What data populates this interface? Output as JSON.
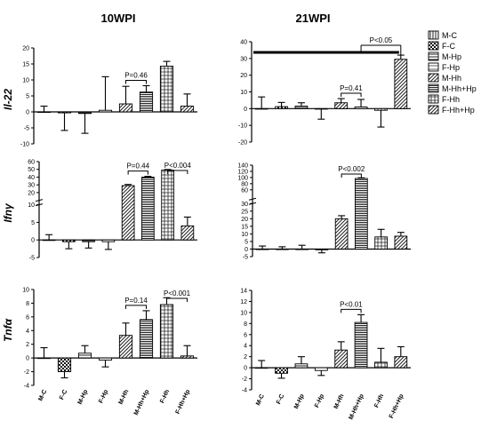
{
  "columns": [
    "10WPI",
    "21WPI"
  ],
  "rows": [
    "Il-22",
    "Ifnγ",
    "Tnfα"
  ],
  "groups": [
    "M-C",
    "F-C",
    "M-Hp",
    "F-Hp",
    "M-Hh",
    "M-Hh+Hp",
    "F-Hh",
    "F-Hh+Hp"
  ],
  "legend": {
    "items": [
      {
        "label": "M-C",
        "pattern": "vlines"
      },
      {
        "label": "F-C",
        "pattern": "check"
      },
      {
        "label": "M-Hp",
        "pattern": "hlines"
      },
      {
        "label": "F-Hp",
        "pattern": "hlines-sparse"
      },
      {
        "label": "M-Hh",
        "pattern": "diag"
      },
      {
        "label": "M-Hh+Hp",
        "pattern": "hlines-dense"
      },
      {
        "label": "F-Hh",
        "pattern": "grid"
      },
      {
        "label": "F-Hh+Hp",
        "pattern": "diag"
      }
    ]
  },
  "chart_data": [
    {
      "type": "bar",
      "row": "Il-22",
      "column": "10WPI",
      "categories": [
        "M-C",
        "F-C",
        "M-Hp",
        "F-Hp",
        "M-Hh",
        "M-Hh+Hp",
        "F-Hh",
        "F-Hh+Hp"
      ],
      "values": [
        0,
        -0.3,
        -0.5,
        0.5,
        2.5,
        6.2,
        14.3,
        1.8
      ],
      "errors": [
        1.8,
        5.5,
        6.2,
        10.5,
        5.5,
        2.0,
        1.5,
        3.8
      ],
      "ylim": [
        -10,
        20
      ],
      "yticks": [
        -10,
        -5,
        0,
        5,
        10,
        15,
        20
      ],
      "ytick_labels": [
        "-10",
        "-5",
        "0",
        "5",
        "10",
        "15",
        "20"
      ],
      "annotations": [
        {
          "text": "P=0.46",
          "from": "M-Hh",
          "to": "M-Hh+Hp"
        }
      ]
    },
    {
      "type": "bar",
      "row": "Il-22",
      "column": "21WPI",
      "categories": [
        "M-C",
        "F-C",
        "M-Hp",
        "F-Hp",
        "M-Hh",
        "M-Hh+Hp",
        "F-Hh",
        "F-Hh+Hp"
      ],
      "values": [
        0,
        1.2,
        1.5,
        -0.3,
        3.5,
        1.0,
        -1.0,
        29.5
      ],
      "errors": [
        7.0,
        2.5,
        2.0,
        6.0,
        2.5,
        4.5,
        10.0,
        2.5
      ],
      "ylim": [
        -20,
        40
      ],
      "yticks": [
        -20,
        -10,
        0,
        10,
        20,
        30,
        40
      ],
      "ytick_labels": [
        "-20",
        "-10",
        "0",
        "10",
        "20",
        "30",
        "40"
      ],
      "annotations": [
        {
          "text": "P=0.41",
          "from": "M-Hh",
          "to": "M-Hh+Hp"
        },
        {
          "text": "P<0.05",
          "from": "M-Hh+Hp",
          "to": "F-Hh+Hp",
          "style": "group"
        }
      ]
    },
    {
      "type": "bar",
      "row": "Ifnγ",
      "column": "10WPI",
      "categories": [
        "M-C",
        "F-C",
        "M-Hp",
        "F-Hp",
        "M-Hh",
        "M-Hh+Hp",
        "F-Hh",
        "F-Hh+Hp"
      ],
      "values": [
        0,
        -0.5,
        -0.5,
        -0.5,
        29,
        40,
        49,
        4
      ],
      "errors": [
        1.5,
        2.0,
        1.8,
        2.2,
        1.5,
        1.0,
        0.8,
        2.5
      ],
      "ylim": [
        -5,
        60
      ],
      "yticks": [
        -5,
        0,
        5,
        10,
        20,
        30,
        40,
        50,
        60
      ],
      "ytick_labels": [
        "-5",
        "0",
        "5",
        "10",
        "20",
        "30",
        "40",
        "50",
        "60"
      ],
      "axis_break": 10,
      "annotations": [
        {
          "text": "P=0.44",
          "from": "M-Hh",
          "to": "M-Hh+Hp"
        },
        {
          "text": "P<0.004",
          "from": "F-Hh",
          "to": "F-Hh+Hp"
        }
      ]
    },
    {
      "type": "bar",
      "row": "Ifnγ",
      "column": "21WPI",
      "categories": [
        "M-C",
        "F-C",
        "M-Hp",
        "F-Hp",
        "M-Hh",
        "M-Hh+Hp",
        "F-Hh",
        "F-Hh+Hp"
      ],
      "values": [
        0,
        0,
        0,
        -0.5,
        20,
        97,
        8,
        8.5
      ],
      "errors": [
        2.0,
        1.5,
        2.5,
        2.0,
        2.0,
        2.0,
        5.0,
        2.5
      ],
      "ylim": [
        -5,
        140
      ],
      "yticks": [
        -5,
        0,
        5,
        10,
        15,
        20,
        25,
        30,
        60,
        80,
        100,
        120,
        140
      ],
      "ytick_labels": [
        "-5",
        "0",
        "5",
        "10",
        "15",
        "20",
        "25",
        "30",
        "60",
        "80",
        "100",
        "120",
        "140"
      ],
      "axis_break": 30,
      "annotations": [
        {
          "text": "P<0.002",
          "from": "M-Hh",
          "to": "M-Hh+Hp"
        }
      ]
    },
    {
      "type": "bar",
      "row": "Tnfα",
      "column": "10WPI",
      "categories": [
        "M-C",
        "F-C",
        "M-Hp",
        "F-Hp",
        "M-Hh",
        "M-Hh+Hp",
        "F-Hh",
        "F-Hh+Hp"
      ],
      "values": [
        0,
        -2,
        0.7,
        -0.3,
        3.3,
        5.6,
        7.8,
        0.3
      ],
      "errors": [
        1.5,
        0.9,
        1.1,
        1.0,
        1.8,
        1.3,
        1.0,
        1.5
      ],
      "ylim": [
        -4,
        10
      ],
      "yticks": [
        -4,
        -2,
        0,
        2,
        4,
        6,
        8,
        10
      ],
      "ytick_labels": [
        "-4",
        "-2",
        "0",
        "2",
        "4",
        "6",
        "8",
        "10"
      ],
      "annotations": [
        {
          "text": "P=0.14",
          "from": "M-Hh",
          "to": "M-Hh+Hp"
        },
        {
          "text": "P<0.001",
          "from": "F-Hh",
          "to": "F-Hh+Hp"
        }
      ]
    },
    {
      "type": "bar",
      "row": "Tnfα",
      "column": "21WPI",
      "categories": [
        "M-C",
        "F-C",
        "M-Hp",
        "F-Hp",
        "M-Hh",
        "M-Hh+Hp",
        "F-Hh",
        "F-Hh+Hp"
      ],
      "values": [
        0,
        -1,
        0.7,
        -0.5,
        3.2,
        8.2,
        1,
        2
      ],
      "errors": [
        1.3,
        0.9,
        1.3,
        0.9,
        1.5,
        1.4,
        2.5,
        1.8
      ],
      "ylim": [
        -4,
        14
      ],
      "yticks": [
        -4,
        -2,
        0,
        2,
        4,
        6,
        8,
        10,
        12,
        14
      ],
      "ytick_labels": [
        "-4",
        "-2",
        "0",
        "2",
        "4",
        "6",
        "8",
        "10",
        "12",
        "14"
      ],
      "annotations": [
        {
          "text": "P<0.01",
          "from": "M-Hh",
          "to": "M-Hh+Hp"
        }
      ]
    }
  ]
}
